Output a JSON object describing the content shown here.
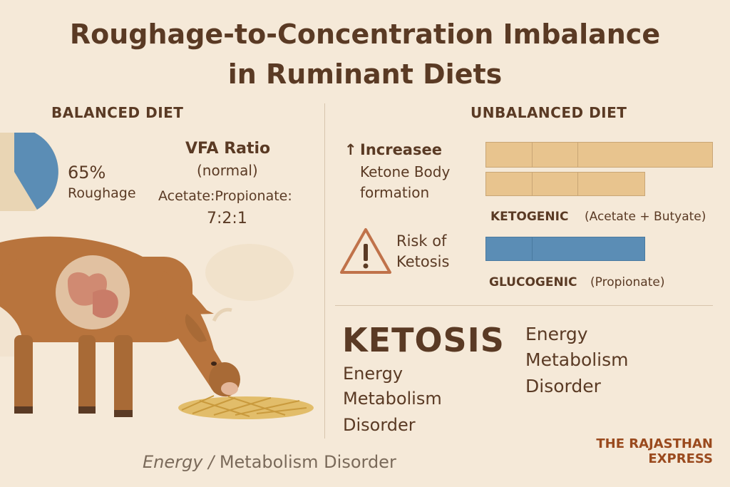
{
  "title": {
    "line1": "Roughage-to-Concentration Imbalance",
    "line2": "in Ruminant Diets"
  },
  "balanced": {
    "heading": "BALANCED DIET",
    "pie_percent": "65%",
    "pie_label": "Roughage",
    "pie_fraction": 0.65,
    "vfa_title": "VFA Ratio",
    "vfa_subtitle": "(normal)",
    "ratio_label": "Acetate:Propionate:",
    "ratio_value": "7:2:1"
  },
  "unbalanced": {
    "heading": "UNBALANCED DIET",
    "ketone_arrow": "↑",
    "ketone_line1": "Increasee",
    "ketone_line2": "Ketone Body",
    "ketone_line3": "formation",
    "risk_line1": "Risk of",
    "risk_line2": "Ketosis",
    "ketogenic_label": "KETOGENIC",
    "ketogenic_detail": "(Acetate + Butyate)",
    "glucogenic_label": "GLUCOGENIC",
    "glucogenic_detail": "(Propionate)"
  },
  "ketosis": {
    "title": "KETOSIS",
    "line1": "Energy",
    "line2": "Metabolism",
    "line3": "Disorder",
    "side_line1": "Energy",
    "side_line2": "Metabolism",
    "side_line3": "Disorder"
  },
  "footer": {
    "caption_italic": "Energy /",
    "caption_rest": "Metabolism Disorder",
    "brand_line1": "THE RAJASTHAN",
    "brand_line2": "EXPRESS"
  },
  "colors": {
    "background": "#f5e9d8",
    "text_brown": "#5a3a24",
    "roughage_blue": "#5b8db5",
    "bar_tan": "#e8c48e",
    "cow_brown": "#b8743d",
    "brand_rust": "#9a4a1e"
  }
}
